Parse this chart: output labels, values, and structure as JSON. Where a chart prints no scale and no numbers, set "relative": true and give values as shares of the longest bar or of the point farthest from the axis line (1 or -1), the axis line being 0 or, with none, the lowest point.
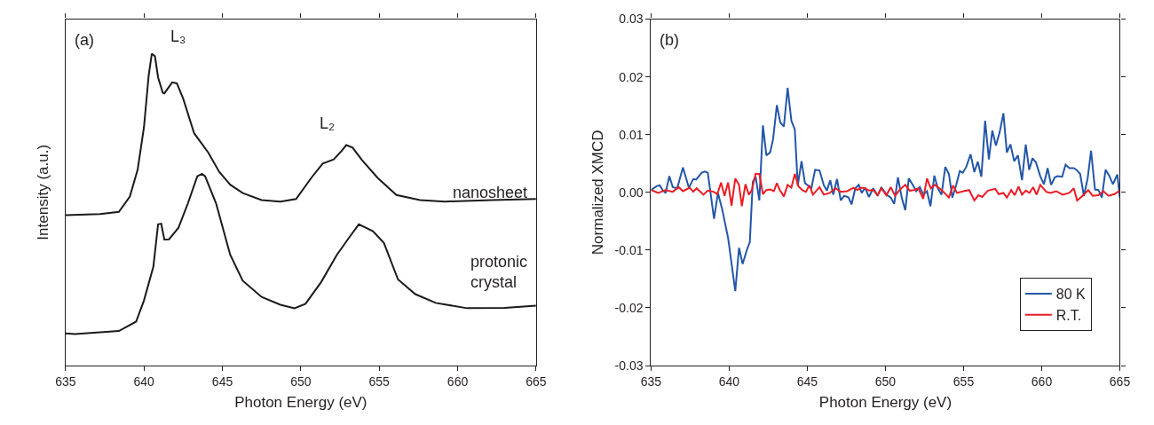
{
  "chart_data": [
    {
      "type": "line",
      "relative": true,
      "xlabel": "Photon Energy (eV)",
      "ylabel": "Intensity (a.u.)",
      "xlim": [
        635,
        665
      ],
      "xticks": [
        635,
        640,
        645,
        650,
        655,
        660,
        665
      ],
      "tick_labels": "x",
      "legend": false,
      "annotations": [
        "(a)",
        "L₃",
        "L₂",
        "nanosheet",
        "protonic\ncrystal"
      ],
      "series": [
        {
          "color": "#1a1a1a",
          "x": [
            635.0,
            637.2,
            638.4,
            639.1,
            639.6,
            640.0,
            640.3,
            640.5,
            640.7,
            640.9,
            641.2,
            641.3,
            641.8,
            642.1,
            642.5,
            643.2,
            644.1,
            644.8,
            645.5,
            646.3,
            647.5,
            648.7,
            649.7,
            650.7,
            651.4,
            652.1,
            652.6,
            652.9,
            653.3,
            653.9,
            654.9,
            656.1,
            657.6,
            659.2,
            662.2,
            665.0
          ],
          "values": [
            0.482,
            0.486,
            0.493,
            0.542,
            0.629,
            0.764,
            0.93,
            1.0,
            0.992,
            0.924,
            0.875,
            0.873,
            0.908,
            0.905,
            0.856,
            0.745,
            0.683,
            0.621,
            0.58,
            0.553,
            0.531,
            0.526,
            0.534,
            0.604,
            0.648,
            0.661,
            0.688,
            0.707,
            0.699,
            0.659,
            0.602,
            0.547,
            0.531,
            0.526,
            0.531,
            0.534
          ]
        },
        {
          "color": "#1a1a1a",
          "x": [
            635.0,
            635.6,
            638.4,
            639.5,
            640.0,
            640.6,
            640.9,
            641.1,
            641.3,
            641.6,
            642.2,
            642.8,
            643.4,
            643.7,
            643.9,
            644.6,
            645.5,
            646.3,
            647.5,
            648.7,
            649.6,
            650.3,
            651.3,
            652.3,
            653.1,
            653.7,
            654.6,
            655.3,
            656.2,
            657.3,
            658.6,
            660.6,
            663.0,
            665.0
          ],
          "values": [
            0.103,
            0.101,
            0.111,
            0.141,
            0.209,
            0.317,
            0.453,
            0.455,
            0.404,
            0.405,
            0.442,
            0.52,
            0.607,
            0.615,
            0.607,
            0.52,
            0.355,
            0.272,
            0.22,
            0.195,
            0.184,
            0.198,
            0.268,
            0.355,
            0.412,
            0.453,
            0.431,
            0.393,
            0.276,
            0.229,
            0.201,
            0.184,
            0.185,
            0.192
          ]
        }
      ]
    },
    {
      "type": "line",
      "xlabel": "Photon Energy (eV)",
      "ylabel": "Normalized XMCD",
      "xlim": [
        635,
        665
      ],
      "xticks": [
        635,
        640,
        645,
        650,
        655,
        660,
        665
      ],
      "ylim": [
        -0.03,
        0.03
      ],
      "yticks": [
        {
          "value": -0.03,
          "label": "-0.03"
        },
        {
          "value": -0.02,
          "label": "-0.02"
        },
        {
          "value": -0.01,
          "label": "-0.01"
        },
        {
          "value": 0,
          "label": "0.00"
        },
        {
          "value": 0.01,
          "label": "0.01"
        },
        {
          "value": 0.02,
          "label": "0.02"
        },
        {
          "value": 0.03,
          "label": "0.03"
        }
      ],
      "legend": "bottom right",
      "annotations": [
        "(b)"
      ],
      "series": [
        {
          "name": "80 K",
          "color": "#2356a8",
          "x": [
            635.0,
            635.37,
            635.56,
            635.74,
            635.93,
            636.17,
            636.39,
            636.67,
            637.04,
            637.42,
            637.7,
            637.88,
            638.25,
            638.44,
            638.63,
            639.03,
            639.28,
            639.55,
            639.93,
            640.39,
            640.63,
            640.86,
            641.14,
            641.32,
            641.51,
            641.69,
            641.93,
            642.16,
            642.38,
            642.62,
            642.81,
            643.05,
            643.27,
            643.5,
            643.74,
            643.98,
            644.2,
            644.39,
            644.63,
            644.85,
            645.04,
            645.26,
            645.5,
            645.78,
            646.06,
            646.25,
            646.47,
            646.66,
            646.9,
            647.14,
            647.36,
            647.64,
            647.83,
            648.07,
            648.29,
            648.48,
            648.7,
            648.94,
            649.22,
            649.5,
            649.74,
            650.06,
            650.34,
            650.56,
            650.8,
            651.04,
            651.27,
            651.49,
            651.73,
            651.97,
            652.2,
            652.42,
            652.66,
            652.88,
            653.13,
            653.35,
            653.59,
            653.83,
            654.06,
            654.28,
            654.52,
            654.76,
            654.95,
            655.17,
            655.45,
            655.69,
            655.91,
            656.14,
            656.38,
            656.62,
            656.84,
            657.07,
            657.31,
            657.55,
            657.77,
            658.0,
            658.24,
            658.48,
            658.74,
            658.98,
            659.2,
            659.41,
            659.63,
            659.91,
            660.14,
            660.38,
            660.6,
            660.84,
            661.03,
            661.31,
            661.53,
            661.77,
            662.05,
            662.23,
            662.46,
            662.7,
            662.94,
            663.16,
            663.41,
            663.63,
            663.85,
            664.09,
            664.32,
            664.56,
            664.84,
            665.0
          ],
          "values": [
            0.0004,
            0.0011,
            0.0012,
            0.0004,
            -0.0001,
            0.0028,
            0.0009,
            0.0007,
            0.0043,
            0.0008,
            0.0023,
            0.0022,
            0.0034,
            0.0036,
            0.0034,
            -0.0046,
            -0.0001,
            -0.0029,
            -0.0079,
            -0.0171,
            -0.0096,
            -0.0124,
            -0.0099,
            -0.0086,
            0.0018,
            0.0027,
            -0.0014,
            0.0116,
            0.0064,
            0.0069,
            0.0092,
            0.0151,
            0.0121,
            0.0114,
            0.0181,
            0.0124,
            0.0109,
            0.0012,
            0.0054,
            0.0016,
            0.0012,
            0.0007,
            0.0039,
            0.0038,
            0.0012,
            0.0003,
            0.0021,
            -0.0004,
            0.0023,
            -0.0014,
            -0.0006,
            -0.0009,
            -0.0021,
            0.0007,
            0.0013,
            -0.0001,
            0.0008,
            -0.0008,
            0.0007,
            -0.0006,
            0.0009,
            -0.0004,
            -0.0009,
            -0.002,
            0.0026,
            -0.0009,
            -0.0031,
            0.0024,
            0.0014,
            0.0002,
            0.0009,
            -0.0004,
            0.0002,
            -0.0024,
            0.0029,
            0.0007,
            -0.0004,
            0.0044,
            0.0032,
            -0.0009,
            0.0012,
            0.0037,
            0.0034,
            0.0044,
            0.0066,
            0.0035,
            0.0053,
            0.0027,
            0.0124,
            0.0057,
            0.0107,
            0.0081,
            0.0104,
            0.0137,
            0.0069,
            0.0083,
            0.0054,
            0.0064,
            0.0021,
            0.0083,
            0.0039,
            0.0059,
            0.0052,
            0.0028,
            0.0014,
            0.0042,
            0.0013,
            0.0026,
            0.0028,
            0.0027,
            0.0048,
            0.0042,
            0.0042,
            0.0039,
            0.0032,
            -0.0006,
            0.0024,
            0.0072,
            0.0005,
            0.0004,
            -0.0009,
            0.0039,
            0.0029,
            0.0014,
            0.0031,
            -0.0009
          ]
        },
        {
          "name": "R.T.",
          "color": "#ec1c24",
          "x": [
            635.0,
            635.19,
            635.46,
            635.93,
            636.39,
            636.77,
            637.04,
            637.47,
            637.7,
            637.92,
            638.35,
            638.63,
            639.0,
            639.24,
            639.48,
            639.7,
            639.93,
            640.15,
            640.39,
            640.63,
            640.81,
            641.04,
            641.26,
            641.45,
            641.69,
            641.93,
            642.16,
            642.38,
            642.62,
            642.86,
            643.05,
            643.24,
            643.5,
            643.74,
            643.98,
            644.2,
            644.42,
            644.67,
            644.91,
            645.13,
            645.36,
            645.78,
            646.06,
            646.43,
            646.81,
            647.14,
            647.55,
            647.96,
            648.2,
            648.44,
            648.7,
            648.94,
            649.22,
            649.5,
            649.74,
            650.06,
            650.34,
            650.62,
            650.9,
            651.27,
            651.55,
            651.83,
            652.1,
            652.42,
            652.66,
            652.9,
            653.16,
            653.46,
            653.78,
            654.06,
            654.33,
            654.58,
            654.99,
            655.36,
            655.69,
            655.95,
            656.19,
            656.56,
            657.03,
            657.25,
            657.55,
            657.77,
            658.05,
            658.27,
            658.52,
            658.74,
            658.98,
            659.22,
            659.45,
            659.67,
            659.91,
            660.29,
            660.56,
            660.93,
            661.34,
            661.77,
            662.05,
            662.27,
            662.61,
            662.98,
            663.26,
            663.63,
            663.95,
            664.28,
            664.65,
            665.0
          ],
          "values": [
            0.0004,
            0.0002,
            -0.0001,
            0.0004,
            0.0001,
            0.0009,
            0.0002,
            0.0008,
            0.0001,
            0.0007,
            -0.0004,
            0.0003,
            0.0001,
            -0.0003,
            0.0017,
            -0.0006,
            0.0017,
            -0.0023,
            0.0024,
            0.0013,
            -0.0024,
            0.0014,
            -0.0004,
            0.0004,
            0.0032,
            0.0032,
            -0.0003,
            0.0004,
            0.0005,
            0.0002,
            0.0016,
            0.0004,
            -0.0007,
            0.0013,
            0.0008,
            0.0032,
            0.0011,
            0.0004,
            0.0001,
            0.0012,
            -0.0004,
            0.0009,
            -0.0004,
            -0.0001,
            0.0007,
            0.0001,
            0.0002,
            0.0008,
            0.0004,
            0.0008,
            0.0007,
            0.0003,
            0.0004,
            -0.0005,
            0.0007,
            -0.0005,
            0.0009,
            -0.0006,
            0.0004,
            0.0013,
            0.0003,
            0.0004,
            0.0007,
            -0.0011,
            0.0024,
            0.0007,
            0.0013,
            0.0007,
            -0.0001,
            -0.0009,
            0.0012,
            -0.0001,
            0.0002,
            0.0004,
            -0.0014,
            -0.0005,
            -0.0008,
            0.0003,
            0.0006,
            -0.0003,
            -0.0001,
            -0.0009,
            0.0004,
            -0.0005,
            0.001,
            -0.0004,
            0.0003,
            -0.0001,
            0.0009,
            -0.0004,
            0.0013,
            0.0001,
            -0.0001,
            0.0002,
            -0.0004,
            -0.0001,
            0.0007,
            -0.0014,
            -0.0006,
            0.0004,
            -0.0006,
            -0.0005,
            0.0002,
            -0.0006,
            -0.0003,
            0.0003
          ]
        }
      ]
    }
  ]
}
